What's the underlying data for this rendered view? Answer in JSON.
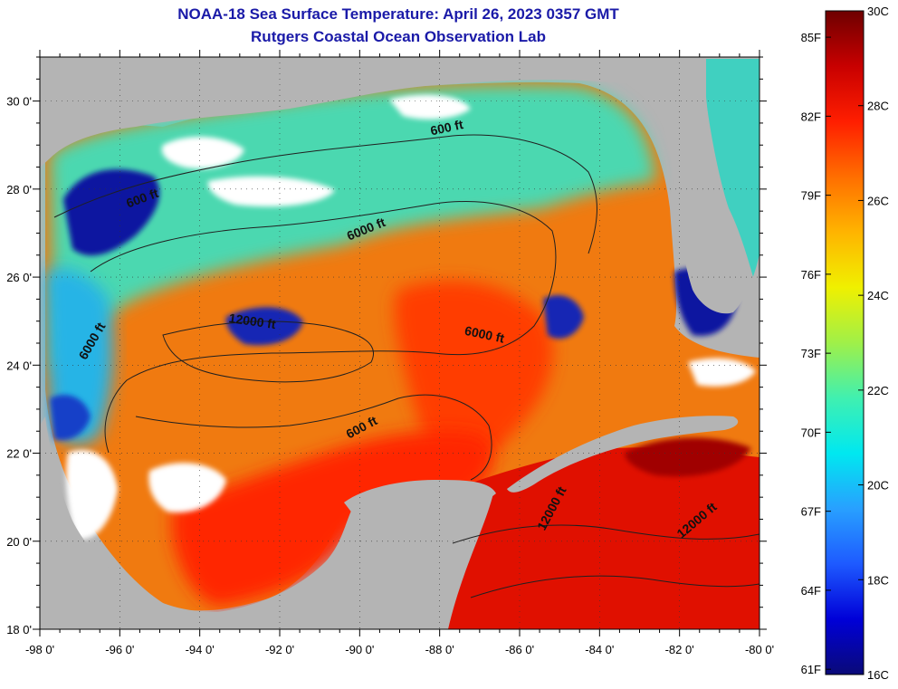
{
  "header": {
    "title": "NOAA-18 Sea Surface Temperature:  April 26, 2023 0357 GMT",
    "subtitle": "Rutgers Coastal Ocean Observation Lab"
  },
  "map": {
    "lon_range": [
      -98,
      -80
    ],
    "lat_range": [
      18,
      31
    ],
    "lon_ticks": [
      {
        "value": -98,
        "label": "-98 0'"
      },
      {
        "value": -96,
        "label": "-96 0'"
      },
      {
        "value": -94,
        "label": "-94 0'"
      },
      {
        "value": -92,
        "label": "-92 0'"
      },
      {
        "value": -90,
        "label": "-90 0'"
      },
      {
        "value": -88,
        "label": "-88 0'"
      },
      {
        "value": -86,
        "label": "-86 0'"
      },
      {
        "value": -84,
        "label": "-84 0'"
      },
      {
        "value": -82,
        "label": "-82 0'"
      },
      {
        "value": -80,
        "label": "-80 0'"
      }
    ],
    "lat_ticks": [
      {
        "value": 18,
        "label": "18 0'"
      },
      {
        "value": 20,
        "label": "20 0'"
      },
      {
        "value": 22,
        "label": "22 0'"
      },
      {
        "value": 24,
        "label": "24 0'"
      },
      {
        "value": 26,
        "label": "26 0'"
      },
      {
        "value": 28,
        "label": "28 0'"
      },
      {
        "value": 30,
        "label": "30 0'"
      }
    ],
    "contour_labels": [
      {
        "text": "600 ft",
        "lon": -87.8,
        "lat": 29.3,
        "angle": -12
      },
      {
        "text": "600 ft",
        "lon": -95.4,
        "lat": 27.7,
        "angle": -20
      },
      {
        "text": "6000 ft",
        "lon": -89.8,
        "lat": 27.0,
        "angle": -22
      },
      {
        "text": "12000 ft",
        "lon": -92.7,
        "lat": 24.9,
        "angle": 8
      },
      {
        "text": "6000 ft",
        "lon": -86.9,
        "lat": 24.6,
        "angle": 12
      },
      {
        "text": "6000 ft",
        "lon": -96.6,
        "lat": 24.5,
        "angle": -60
      },
      {
        "text": "600 ft",
        "lon": -89.9,
        "lat": 22.5,
        "angle": -28
      },
      {
        "text": "12000 ft",
        "lon": -85.1,
        "lat": 20.7,
        "angle": -62
      },
      {
        "text": "12000 ft",
        "lon": -81.5,
        "lat": 20.4,
        "angle": -40
      }
    ],
    "colors": {
      "land": "#b4b4b4",
      "cloud": "#ffffff",
      "contour": "#202020"
    }
  },
  "colorbar": {
    "min_c": 16,
    "max_c": 30,
    "celsius_ticks": [
      {
        "value": 30,
        "label": "30C"
      },
      {
        "value": 28,
        "label": "28C"
      },
      {
        "value": 26,
        "label": "26C"
      },
      {
        "value": 24,
        "label": "24C"
      },
      {
        "value": 22,
        "label": "22C"
      },
      {
        "value": 20,
        "label": "20C"
      },
      {
        "value": 18,
        "label": "18C"
      },
      {
        "value": 16,
        "label": "16C"
      }
    ],
    "fahrenheit_ticks": [
      {
        "value": 85,
        "label": "85F"
      },
      {
        "value": 82,
        "label": "82F"
      },
      {
        "value": 79,
        "label": "79F"
      },
      {
        "value": 76,
        "label": "76F"
      },
      {
        "value": 73,
        "label": "73F"
      },
      {
        "value": 70,
        "label": "70F"
      },
      {
        "value": 67,
        "label": "67F"
      },
      {
        "value": 64,
        "label": "64F"
      },
      {
        "value": 61,
        "label": "61F"
      }
    ],
    "stops": [
      "#0a0a78",
      "#0000d8",
      "#1e5aff",
      "#28a0ff",
      "#00e8f0",
      "#40f0b0",
      "#a0f048",
      "#f0f000",
      "#ffb400",
      "#ff6e00",
      "#ff1e00",
      "#c80000",
      "#6e0000"
    ]
  }
}
